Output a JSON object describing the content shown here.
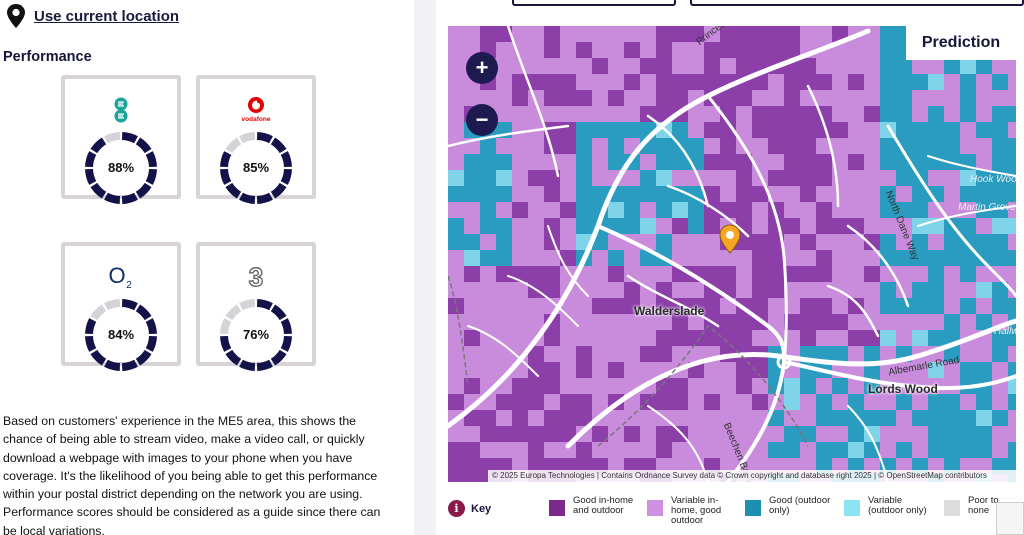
{
  "location": {
    "label": "Use current location"
  },
  "performance": {
    "title": "Performance",
    "cards": [
      {
        "network": "EE",
        "value": 88,
        "label": "88%",
        "logo": "ee-logo",
        "logo_color": "#1aa39a"
      },
      {
        "network": "Vodafone",
        "value": 85,
        "label": "85%",
        "logo": "vodafone-logo",
        "logo_color": "#e60000",
        "logo_text": "vodafone"
      },
      {
        "network": "O2",
        "value": 84,
        "label": "84%",
        "logo": "o2-logo",
        "logo_color": "#0b2f6b",
        "logo_text": "O"
      },
      {
        "network": "Three",
        "value": 76,
        "label": "76%",
        "logo": "three-logo",
        "logo_color": "#555555",
        "logo_text": "3"
      }
    ],
    "ring_color": "#13134a",
    "ring_bg": "#d5d2d8"
  },
  "description": "Based on customers' experience in the ME5 area, this shows the chance of being able to stream video, make a video call, or quickly download a webpage with images to your phone when you have coverage. It's the likelihood of you being able to get this performance within your postal district depending on the network you are using. Performance scores should be considered as a guide since there can be local variations.",
  "map": {
    "prediction_label": "Prediction",
    "zoom_in": "+",
    "zoom_out": "−",
    "attribution": "© 2025 Europa Technologies | Contains Ordnance Survey data © Crown copyright and database right 2025 | © OpenStreetMap contributors",
    "places": [
      "Walderslade",
      "Lords Wood"
    ],
    "road_labels": [
      "Princes Charles Avenue",
      "Albemarle Road",
      "Beechen Bank",
      "North Dane Way",
      "Hook Wood",
      "Martin Grove",
      "Hallw"
    ]
  },
  "key": {
    "title": "Key",
    "items": [
      {
        "label": "Good in-home and outdoor",
        "color": "#7a2a8c"
      },
      {
        "label": "Variable in-home, good outdoor",
        "color": "#d08ee0"
      },
      {
        "label": "Good (outdoor only)",
        "color": "#1f8fb0"
      },
      {
        "label": "Variable (outdoor only)",
        "color": "#8ce3f2"
      },
      {
        "label": "Poor to none",
        "color": "#dcdcdc"
      }
    ]
  },
  "colors": {
    "good": "#8c3fa8",
    "variable": "#c98bdc",
    "outdoor": "#2a9cbf",
    "outdoor_var": "#7fd4ea"
  }
}
